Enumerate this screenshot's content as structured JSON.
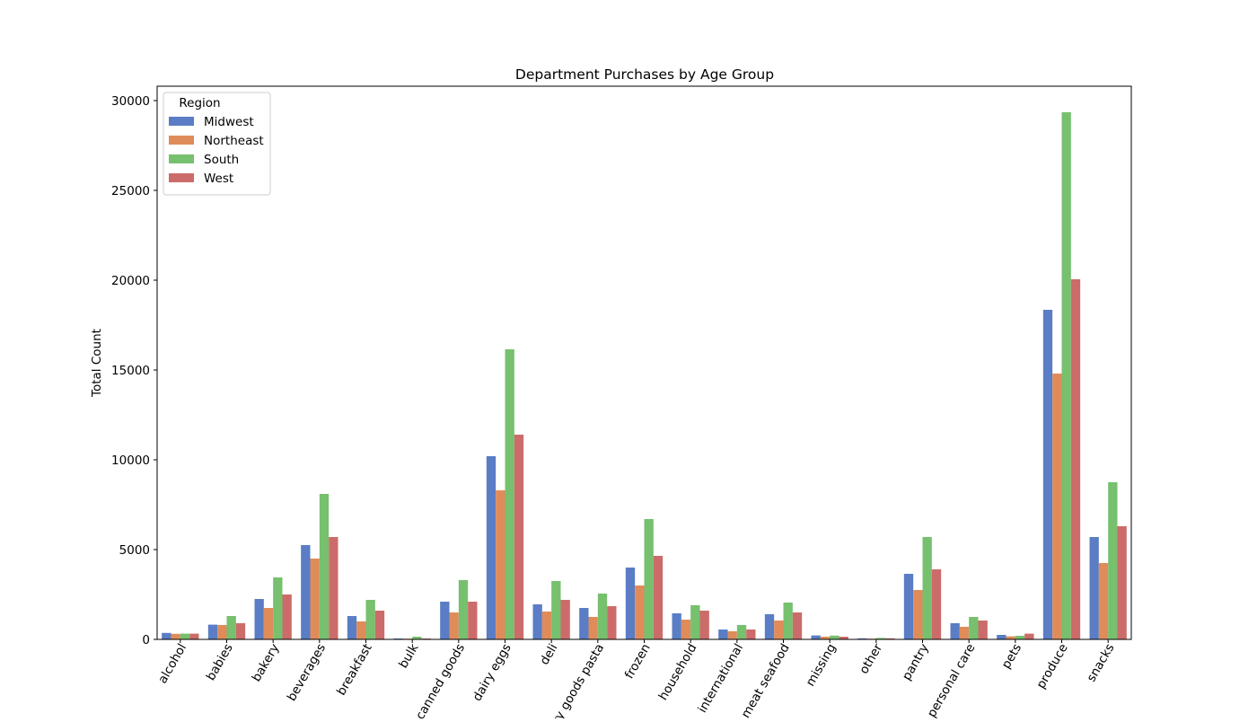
{
  "chart_data": {
    "type": "bar",
    "title": "Department Purchases by Age Group",
    "xlabel": "",
    "ylabel": "Total Count",
    "ylim": [
      0,
      30800
    ],
    "yticks": [
      0,
      5000,
      10000,
      15000,
      20000,
      25000,
      30000
    ],
    "grid": false,
    "legend": {
      "title": "Region",
      "position": "top-left"
    },
    "categories": [
      "alcohol",
      "babies",
      "bakery",
      "beverages",
      "breakfast",
      "bulk",
      "canned goods",
      "dairy eggs",
      "deli",
      "dry goods pasta",
      "frozen",
      "household",
      "international",
      "meat seafood",
      "missing",
      "other",
      "pantry",
      "personal care",
      "pets",
      "produce",
      "snacks"
    ],
    "series": [
      {
        "name": "Midwest",
        "color": "#5a7dc5",
        "values": [
          360,
          820,
          2250,
          5250,
          1300,
          50,
          2100,
          10200,
          1950,
          1750,
          4000,
          1450,
          550,
          1400,
          220,
          60,
          3650,
          900,
          250,
          18350,
          5700
        ]
      },
      {
        "name": "Northeast",
        "color": "#df8c5a",
        "values": [
          310,
          800,
          1750,
          4500,
          1000,
          40,
          1500,
          8300,
          1550,
          1250,
          3000,
          1100,
          450,
          1050,
          150,
          40,
          2750,
          700,
          170,
          14800,
          4250
        ]
      },
      {
        "name": "South",
        "color": "#76c06e",
        "values": [
          320,
          1300,
          3450,
          8100,
          2200,
          150,
          3300,
          16150,
          3250,
          2550,
          6700,
          1900,
          800,
          2050,
          210,
          80,
          5700,
          1250,
          200,
          29350,
          8750
        ]
      },
      {
        "name": "West",
        "color": "#cc6c6a",
        "values": [
          320,
          900,
          2500,
          5700,
          1600,
          50,
          2100,
          11400,
          2200,
          1850,
          4650,
          1600,
          550,
          1500,
          150,
          60,
          3900,
          1050,
          320,
          20050,
          6300
        ]
      }
    ]
  }
}
